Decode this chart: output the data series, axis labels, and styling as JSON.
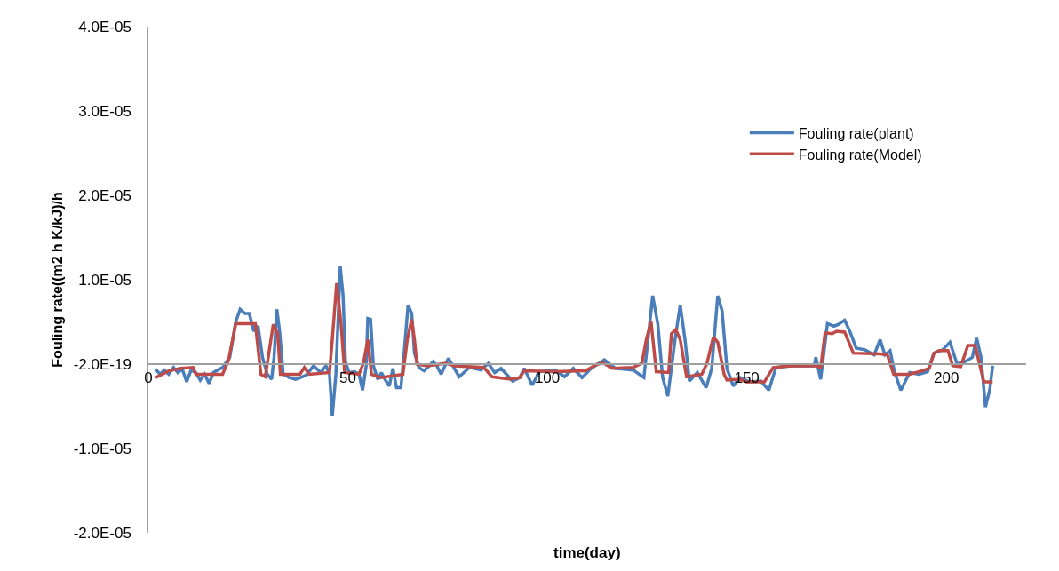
{
  "chart_data": {
    "type": "line",
    "xlabel": "time(day)",
    "ylabel": "Fouling rate((m2 h K/kJ)/h",
    "xlim": [
      0,
      220
    ],
    "xticks": [
      0,
      50,
      100,
      150,
      200
    ],
    "ylim": [
      -2e-05,
      4e-05
    ],
    "yticks": [
      {
        "value": -2e-05,
        "label": "-2.0E-05"
      },
      {
        "value": -1e-05,
        "label": "-1.0E-05"
      },
      {
        "value": 0,
        "label": "-2.0E-19"
      },
      {
        "value": 1e-05,
        "label": "1.0E-05"
      },
      {
        "value": 2e-05,
        "label": "2.0E-05"
      },
      {
        "value": 3e-05,
        "label": "3.0E-05"
      },
      {
        "value": 4e-05,
        "label": "4.0E-05"
      }
    ],
    "grid": false,
    "legend": "right",
    "marker": "none",
    "line_style": "solid",
    "series": [
      {
        "name": "Fouling rate(plant)",
        "color": "#4a7ebb",
        "x": [
          1.8,
          2.9,
          4,
          5.1,
          6.3,
          7.4,
          8.5,
          9.6,
          10.7,
          11.9,
          13,
          14.1,
          15.2,
          16.3,
          17.4,
          18.6,
          20.4,
          21.9,
          23,
          24.2,
          25.3,
          26.4,
          27.5,
          28.6,
          29.8,
          30.9,
          31.5,
          32.2,
          32.9,
          33.8,
          35.3,
          36.9,
          38.7,
          39.8,
          41.4,
          43.2,
          44.5,
          45.4,
          46.1,
          47,
          47.7,
          48.1,
          48.8,
          49.4,
          50.3,
          51.7,
          52.8,
          53.7,
          54.6,
          55,
          55.7,
          56.4,
          57.5,
          58.4,
          59.3,
          60.4,
          61.3,
          62.2,
          63.3,
          64.2,
          65.1,
          66,
          66.7,
          67.8,
          69.1,
          70,
          71.4,
          72.3,
          73.4,
          75.2,
          77.9,
          80.5,
          83.4,
          85.2,
          86.8,
          88.4,
          91.3,
          93.1,
          94.2,
          96.2,
          98,
          102,
          104.3,
          106.5,
          108.7,
          111,
          114.3,
          117,
          121.5,
          124.2,
          126.4,
          127.7,
          128.9,
          130.2,
          132,
          133.3,
          134.5,
          135.6,
          137.6,
          139.8,
          141.2,
          142.7,
          143.8,
          145,
          146.6,
          148.3,
          150.6,
          153.5,
          155.5,
          157.3,
          161.1,
          166.9,
          167.3,
          168.5,
          170.2,
          171.8,
          172.9,
          174.5,
          175.8,
          177.4,
          179.6,
          181.9,
          183.4,
          184.6,
          185.9,
          187,
          188.6,
          190.8,
          193.1,
          195.3,
          196.9,
          199.1,
          200.9,
          202.7,
          204.7,
          206.5,
          207.6,
          208.7,
          209.8,
          210.9,
          211.6
        ],
        "values": [
          -6e-07,
          -1.2e-06,
          -7e-07,
          -1.2e-06,
          -4e-07,
          -1e-06,
          -6e-07,
          -2.1e-06,
          -7e-07,
          -1e-06,
          -1.9e-06,
          -1.2e-06,
          -2.3e-06,
          -1e-06,
          -7e-07,
          -4e-07,
          8e-07,
          5e-06,
          6.5e-06,
          6e-06,
          6e-06,
          3.9e-06,
          4.5e-06,
          8e-07,
          -1.2e-06,
          -1.8e-06,
          8e-07,
          6.5e-06,
          3.9e-06,
          -1.2e-06,
          -1.6e-06,
          -1.8e-06,
          -1.5e-06,
          -1.2e-06,
          -2e-07,
          -1e-06,
          -2e-07,
          -1.2e-06,
          -6.2e-06,
          -1.2e-06,
          7e-06,
          1.16e-05,
          8.1e-06,
          3e-07,
          -1e-06,
          -9e-07,
          -1.2e-06,
          -3.1e-06,
          -2e-07,
          5.4e-06,
          5.3e-06,
          -2e-07,
          -1.8e-06,
          -1e-06,
          -1.8e-06,
          -2.6e-06,
          -5e-07,
          -2.8e-06,
          -2.8e-06,
          1.9e-06,
          7e-06,
          6e-06,
          1.3e-06,
          -4e-07,
          -8e-07,
          -4e-07,
          3e-07,
          -2e-07,
          -1.2e-06,
          7e-07,
          -1.5e-06,
          -4e-07,
          -7e-07,
          1e-07,
          -1e-06,
          -5e-07,
          -2e-06,
          -1.6e-06,
          -5e-07,
          -2.5e-06,
          -9e-07,
          -7e-07,
          -1.5e-06,
          -5e-07,
          -1.6e-06,
          -5e-07,
          5e-07,
          -5e-07,
          -7e-07,
          -1.6e-06,
          8.1e-06,
          4.7e-06,
          -1.6e-06,
          -3.8e-06,
          2.9e-06,
          7e-06,
          2.9e-06,
          -2e-06,
          -1e-06,
          -2.8e-06,
          -5e-07,
          8.1e-06,
          6.3e-06,
          -5e-07,
          -2.6e-06,
          -1.6e-06,
          -2.1e-06,
          -2e-06,
          -3.1e-06,
          -4e-07,
          -2e-07,
          -2e-07,
          8e-07,
          -1.8e-06,
          4.8e-06,
          4.5e-06,
          4.7e-06,
          5.2e-06,
          3.9e-06,
          1.9e-06,
          1.7e-06,
          1.1e-06,
          2.9e-06,
          1.1e-06,
          1.6e-06,
          -9e-07,
          -3.1e-06,
          -1e-06,
          -1.2e-06,
          -9e-07,
          1.3e-06,
          1.7e-06,
          2.6e-06,
          0,
          3e-07,
          8e-07,
          3.1e-06,
          8e-07,
          -5.1e-06,
          -3e-06,
          -2e-07
        ]
      },
      {
        "name": "Fouling rate(Model)",
        "color": "#be4b48",
        "x": [
          1.8,
          5.1,
          8.1,
          11.2,
          11.9,
          18.6,
          20.1,
          21.9,
          26.8,
          28.2,
          29.3,
          31.3,
          32.4,
          33.1,
          38,
          39.1,
          40.3,
          45.4,
          46.1,
          47.2,
          48.3,
          49.2,
          52.8,
          53.9,
          55,
          55.9,
          58.2,
          63.8,
          64.9,
          66,
          66.7,
          67.3,
          70,
          74.5,
          76.7,
          84.1,
          86.1,
          90.8,
          93.1,
          94.2,
          102,
          109.6,
          112.5,
          114.1,
          116.3,
          121.5,
          123.7,
          124.8,
          126,
          127.3,
          130.4,
          131.1,
          132.2,
          133.3,
          134.9,
          138.7,
          140,
          141.6,
          142.7,
          144.3,
          145,
          148.3,
          149.9,
          154.4,
          156.6,
          161.1,
          167.8,
          168.5,
          169.6,
          171.4,
          172.5,
          174.5,
          176.7,
          183.4,
          185.2,
          186.8,
          190.8,
          194.6,
          195.7,
          196.9,
          198.2,
          200.4,
          201.6,
          203.6,
          205.4,
          207.2,
          209.4,
          211.6
        ],
        "values": [
          -1.6e-06,
          -8e-07,
          -5e-07,
          -4e-07,
          -1.2e-06,
          -1.2e-06,
          5e-07,
          4.8e-06,
          4.8e-06,
          -1.2e-06,
          -1.5e-06,
          4.7e-06,
          3.6e-06,
          -1.2e-06,
          -1.2e-06,
          -4e-07,
          -1.2e-06,
          -1e-06,
          2.9e-06,
          9.6e-06,
          4.7e-06,
          -1e-06,
          -1.2e-06,
          1e-07,
          2.9e-06,
          -1.2e-06,
          -1.6e-06,
          -1.2e-06,
          2.9e-06,
          5.3e-06,
          2.9e-06,
          0,
          -2e-07,
          1e-07,
          -2e-07,
          -4e-07,
          -1.5e-06,
          -1.8e-06,
          -1.6e-06,
          -8e-07,
          -9e-07,
          -8e-07,
          0,
          1e-07,
          -5e-07,
          -4e-07,
          1e-07,
          2.9e-06,
          5e-06,
          -9e-07,
          -1e-06,
          3.6e-06,
          4.1e-06,
          2.9e-06,
          -1.5e-06,
          -1.2e-06,
          1e-07,
          3.2e-06,
          2.6e-06,
          -1.2e-06,
          -1.9e-06,
          -1.8e-06,
          -2.1e-06,
          -2.1e-06,
          -4e-07,
          -2e-07,
          -2e-07,
          -5e-07,
          3.7e-06,
          3.6e-06,
          3.9e-06,
          3.8e-06,
          1.3e-06,
          1.2e-06,
          1.1e-06,
          -1.2e-06,
          -1.2e-06,
          -7e-07,
          -5e-07,
          1.3e-06,
          1.6e-06,
          1.6e-06,
          -2e-07,
          -3e-07,
          2.2e-06,
          2.2e-06,
          -2.1e-06,
          -2.1e-06
        ]
      }
    ]
  }
}
